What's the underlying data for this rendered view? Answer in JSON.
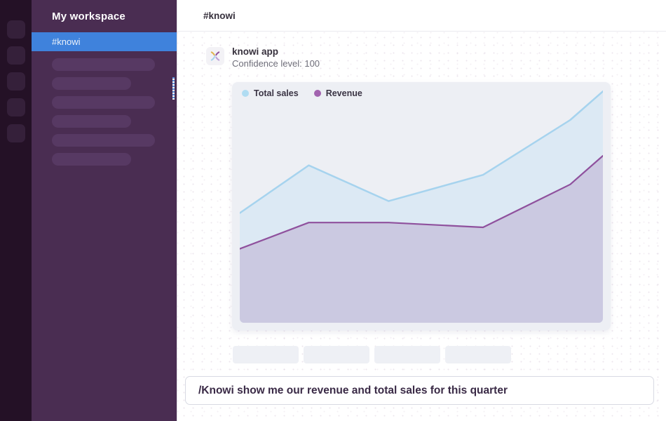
{
  "workspace": {
    "name": "My workspace"
  },
  "left_rail": {
    "icon_count": 5
  },
  "sidebar": {
    "active_channel": "#knowi",
    "placeholder_bar_widths": [
      147,
      113,
      147,
      113,
      147,
      113
    ]
  },
  "header": {
    "channel": "#knowi"
  },
  "message": {
    "sender": "knowi app",
    "confidence": "Confidence level: 100",
    "avatar_icon": "knowi-logo"
  },
  "chart_data": {
    "type": "area",
    "title": "",
    "xlabel": "",
    "ylabel": "",
    "x": [
      0,
      0.19,
      0.41,
      0.67,
      0.91,
      1
    ],
    "series": [
      {
        "name": "Total sales",
        "values": [
          46,
          66,
          51,
          62,
          85,
          97
        ],
        "line_color": "#a6d3ee",
        "fill_color": "#dce9f4",
        "dot_color": "#b0dcf2",
        "line_width": 2.5
      },
      {
        "name": "Revenue",
        "values": [
          31,
          42,
          42,
          40,
          58,
          70
        ],
        "line_color": "#8f519d",
        "fill_color": "#cbc9e1",
        "dot_color": "#a263af",
        "line_width": 2.2
      }
    ],
    "ylim": [
      0,
      100
    ],
    "grid": false,
    "axes_visible": false,
    "legend_position": "top-left",
    "plot_background": "#edeff4"
  },
  "actions": {
    "placeholder_count": 4
  },
  "composer": {
    "value": "/Knowi show me our revenue and total sales for this quarter"
  },
  "colors": {
    "rail_bg": "#241126",
    "sidebar_bg": "#4a2d52",
    "active_channel_bg": "#3f82dc",
    "chart_card_bg": "#edeff4",
    "composer_text": "#3a2a46",
    "logo_gold": "#dfb44e",
    "logo_purple": "#8f519d",
    "logo_blue": "#a6d3ee",
    "logo_lavender": "#bda0d8"
  }
}
